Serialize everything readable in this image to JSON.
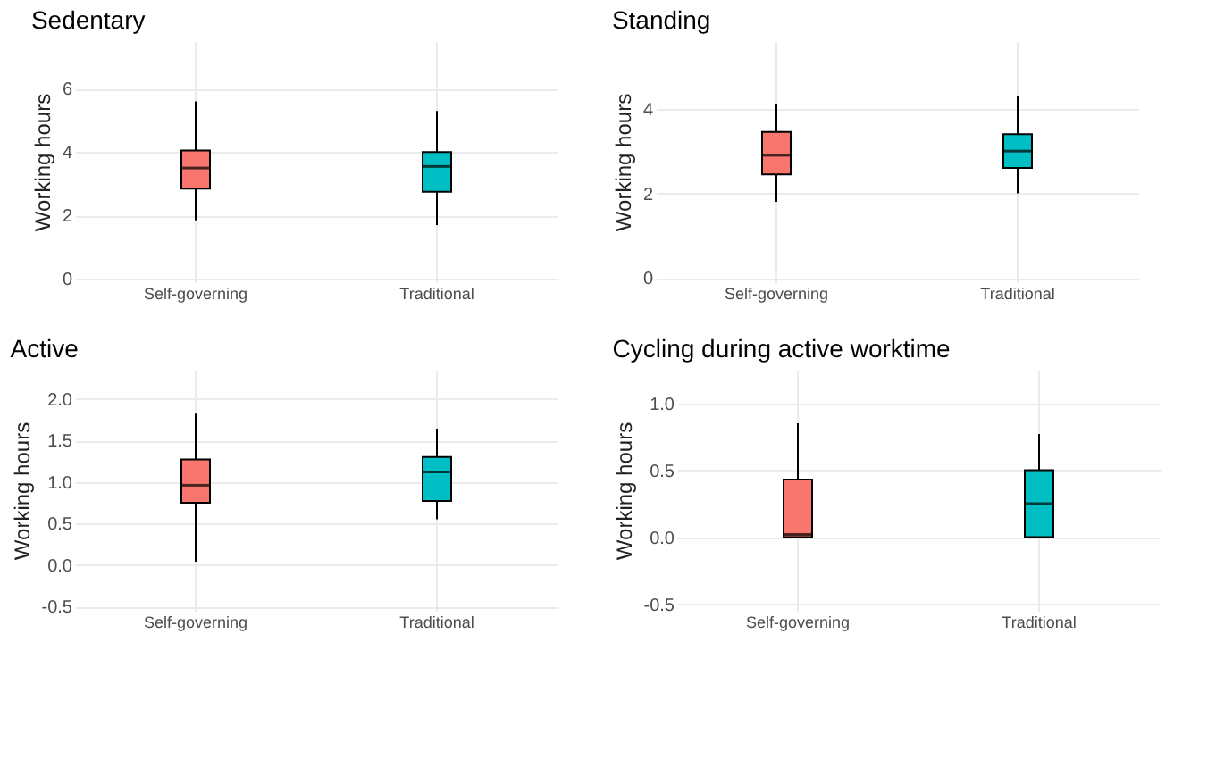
{
  "chart_data": [
    {
      "type": "box",
      "title": "Sedentary",
      "ylabel": "Working hours",
      "categories": [
        "Self-governing",
        "Traditional"
      ],
      "colors": [
        "#f8766d",
        "#00bfc4"
      ],
      "ylim": [
        -0.1,
        7.5
      ],
      "yticks": [
        0,
        2,
        4,
        6
      ],
      "grid": true,
      "legend": false,
      "boxes": [
        {
          "low": 1.85,
          "q1": 2.85,
          "median": 3.5,
          "q3": 4.05,
          "high": 5.6
        },
        {
          "low": 1.7,
          "q1": 2.75,
          "median": 3.55,
          "q3": 4.0,
          "high": 5.3
        }
      ]
    },
    {
      "type": "box",
      "title": "Standing",
      "ylabel": "Working hours",
      "categories": [
        "Self-governing",
        "Traditional"
      ],
      "colors": [
        "#f8766d",
        "#00bfc4"
      ],
      "ylim": [
        -0.1,
        5.6
      ],
      "yticks": [
        0,
        2,
        4
      ],
      "grid": true,
      "legend": false,
      "boxes": [
        {
          "low": 1.8,
          "q1": 2.45,
          "median": 2.9,
          "q3": 3.45,
          "high": 4.1
        },
        {
          "low": 2.0,
          "q1": 2.6,
          "median": 3.0,
          "q3": 3.4,
          "high": 4.3
        }
      ]
    },
    {
      "type": "box",
      "title": "Active",
      "ylabel": "Working hours",
      "categories": [
        "Self-governing",
        "Traditional"
      ],
      "colors": [
        "#f8766d",
        "#00bfc4"
      ],
      "ylim": [
        -0.55,
        2.35
      ],
      "yticks": [
        {
          "value": -0.5,
          "label": "-0.5"
        },
        {
          "value": 0,
          "label": "0.0"
        },
        0.5,
        {
          "value": 1,
          "label": "1.0"
        },
        1.5,
        {
          "value": 2,
          "label": "2.0"
        }
      ],
      "grid": true,
      "legend": false,
      "boxes": [
        {
          "low": 0.04,
          "q1": 0.75,
          "median": 0.96,
          "q3": 1.27,
          "high": 1.82
        },
        {
          "low": 0.55,
          "q1": 0.77,
          "median": 1.12,
          "q3": 1.3,
          "high": 1.64
        }
      ]
    },
    {
      "type": "box",
      "title": "Cycling during active worktime",
      "ylabel": "Working hours",
      "categories": [
        "Self-governing",
        "Traditional"
      ],
      "colors": [
        "#f8766d",
        "#00bfc4"
      ],
      "ylim": [
        -0.55,
        1.25
      ],
      "yticks": [
        {
          "value": -0.5,
          "label": "-0.5"
        },
        {
          "value": 0,
          "label": "0.0"
        },
        0.5,
        {
          "value": 1,
          "label": "1.0"
        }
      ],
      "grid": true,
      "legend": false,
      "boxes": [
        {
          "low": 0.0,
          "q1": 0.0,
          "median": 0.02,
          "q3": 0.43,
          "high": 0.85
        },
        {
          "low": 0.0,
          "q1": 0.0,
          "median": 0.25,
          "q3": 0.5,
          "high": 0.77
        }
      ]
    }
  ]
}
